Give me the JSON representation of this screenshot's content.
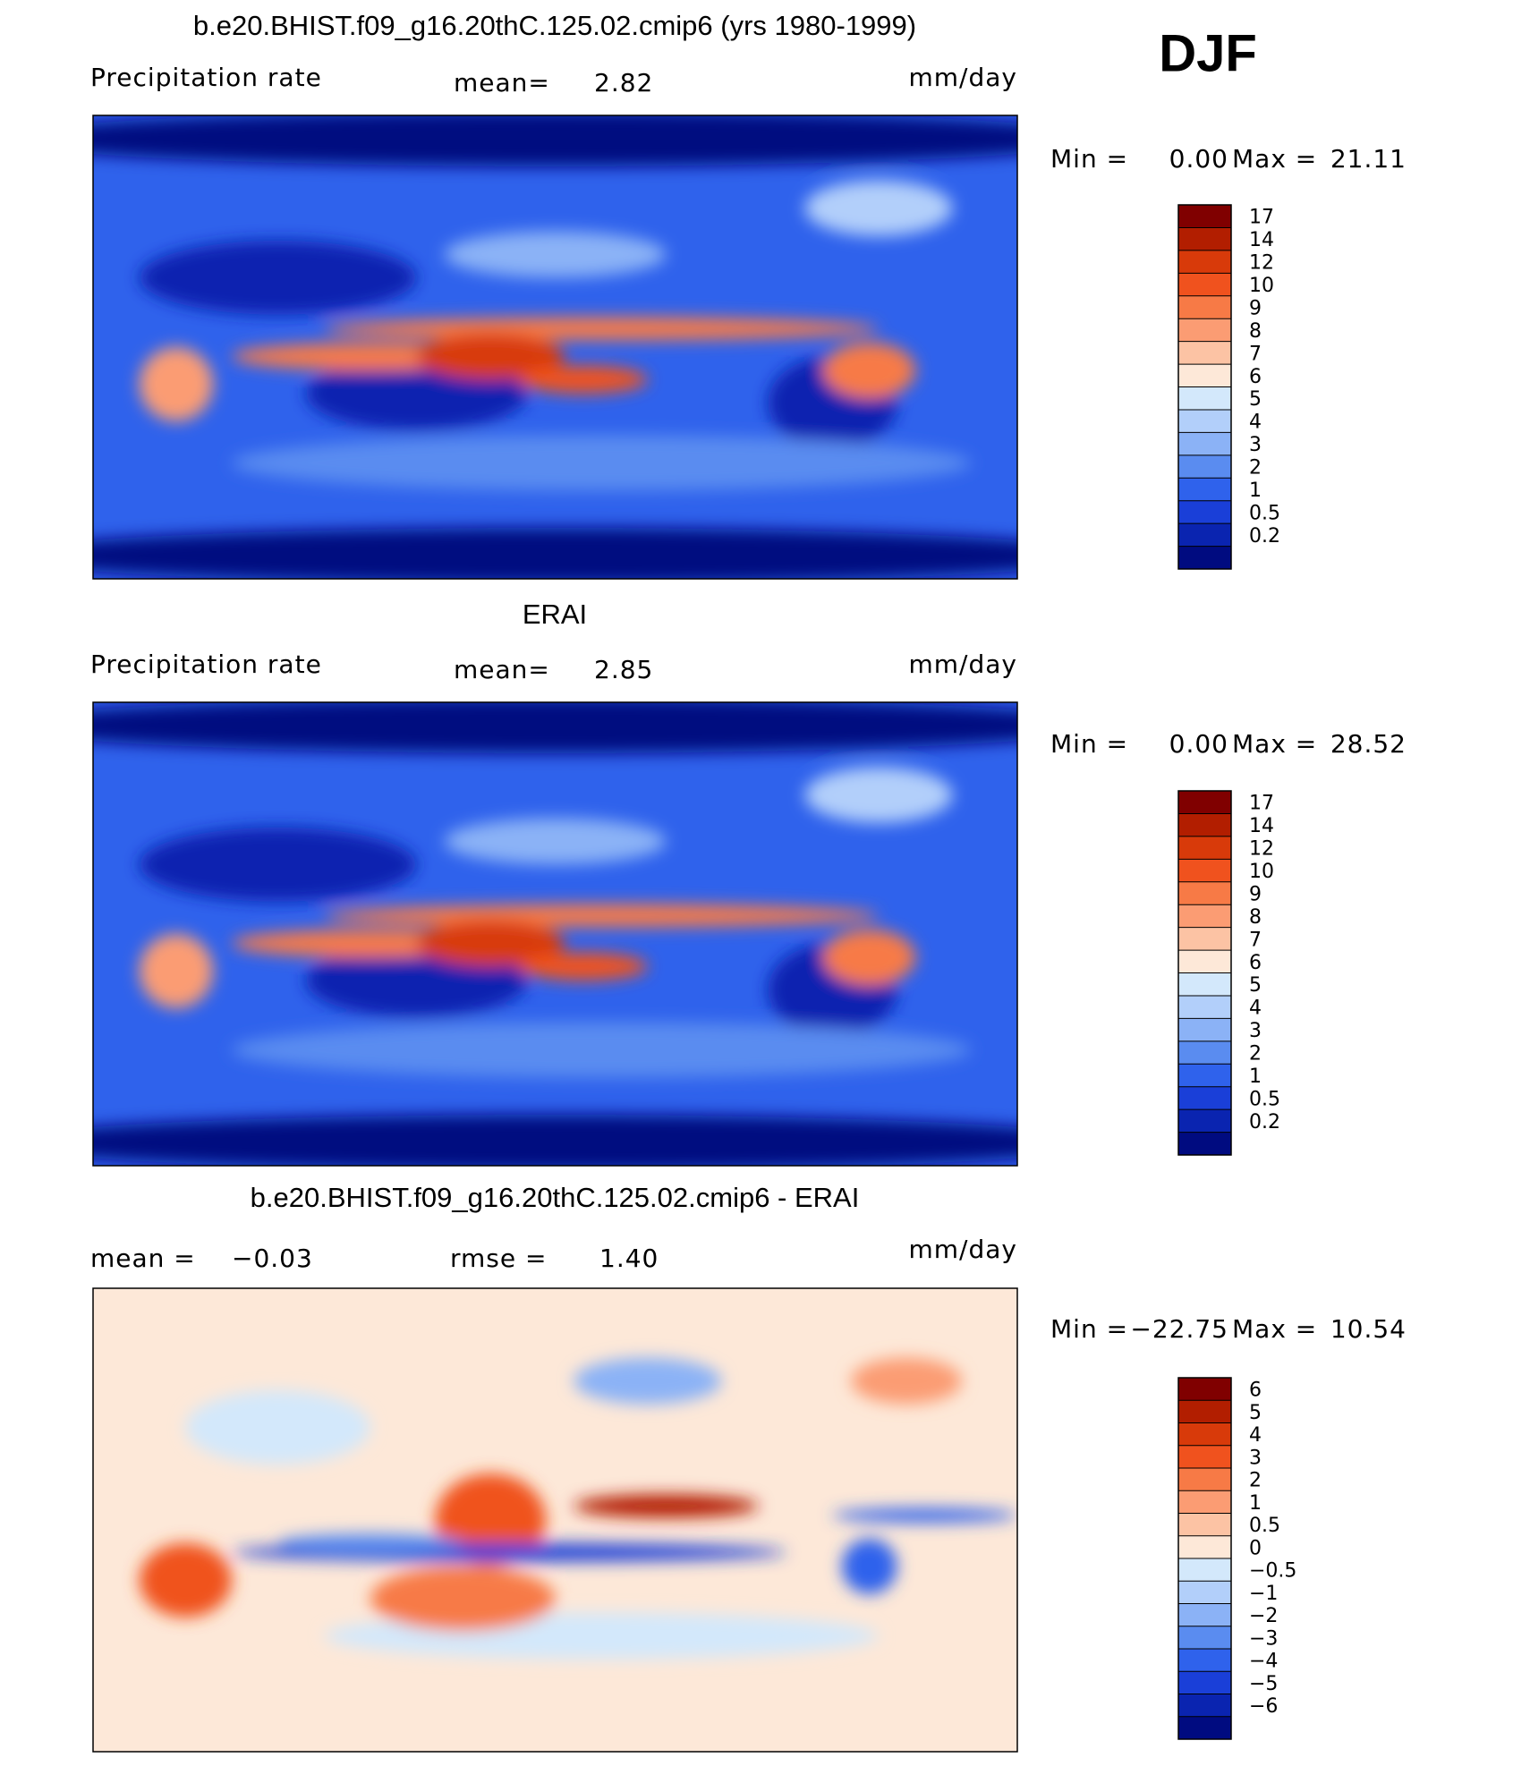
{
  "title": "DJF",
  "panels": [
    {
      "title": "b.e20.BHIST.f09_g16.20thC.125.02.cmip6 (yrs 1980-1999)",
      "field": "Precipitation rate",
      "stat1_label": "mean=",
      "stat1_value": "2.82",
      "units": "mm/day",
      "min_label": "Min =",
      "min_value": "0.00",
      "max_label": "Max =",
      "max_value": "21.11",
      "colorbar": {
        "levels": [
          17,
          14,
          12,
          10,
          9,
          8,
          7,
          6,
          5,
          4,
          3,
          2,
          1,
          0.5,
          0.2
        ],
        "colors": [
          "#800000",
          "#b21e00",
          "#d83a0a",
          "#f0521e",
          "#f77a46",
          "#fb9c73",
          "#fcc3a4",
          "#fde8d8",
          "#d3e8fb",
          "#b2cffa",
          "#8bb2f6",
          "#5a8cf0",
          "#2f62ec",
          "#1a3fd8",
          "#0a24b0",
          "#000b80"
        ]
      }
    },
    {
      "title": "ERAI",
      "field": "Precipitation rate",
      "stat1_label": "mean=",
      "stat1_value": "2.85",
      "units": "mm/day",
      "min_label": "Min =",
      "min_value": "0.00",
      "max_label": "Max =",
      "max_value": "28.52",
      "colorbar": {
        "levels": [
          17,
          14,
          12,
          10,
          9,
          8,
          7,
          6,
          5,
          4,
          3,
          2,
          1,
          0.5,
          0.2
        ],
        "colors": [
          "#800000",
          "#b21e00",
          "#d83a0a",
          "#f0521e",
          "#f77a46",
          "#fb9c73",
          "#fcc3a4",
          "#fde8d8",
          "#d3e8fb",
          "#b2cffa",
          "#8bb2f6",
          "#5a8cf0",
          "#2f62ec",
          "#1a3fd8",
          "#0a24b0",
          "#000b80"
        ]
      }
    },
    {
      "title": "b.e20.BHIST.f09_g16.20thC.125.02.cmip6 - ERAI",
      "stat1_label": "mean =",
      "stat1_value": "−0.03",
      "stat2_label": "rmse =",
      "stat2_value": "1.40",
      "units": "mm/day",
      "min_label": "Min =",
      "min_value": "−22.75",
      "max_label": "Max =",
      "max_value": "10.54",
      "colorbar": {
        "levels": [
          6,
          5,
          4,
          3,
          2,
          1,
          0.5,
          0,
          {
            "value": -0.5,
            "label": "−0.5"
          },
          {
            "value": -1,
            "label": "−1"
          },
          {
            "value": -2,
            "label": "−2"
          },
          {
            "value": -3,
            "label": "−3"
          },
          {
            "value": -4,
            "label": "−4"
          },
          {
            "value": -5,
            "label": "−5"
          },
          {
            "value": -6,
            "label": "−6"
          }
        ],
        "colors": [
          "#800000",
          "#b21e00",
          "#d83a0a",
          "#f0521e",
          "#f77a46",
          "#fb9c73",
          "#fcc3a4",
          "#fde8d8",
          "#d3e8fb",
          "#b2cffa",
          "#8bb2f6",
          "#5a8cf0",
          "#2f62ec",
          "#1a3fd8",
          "#0a24b0",
          "#000b80"
        ]
      }
    }
  ]
}
